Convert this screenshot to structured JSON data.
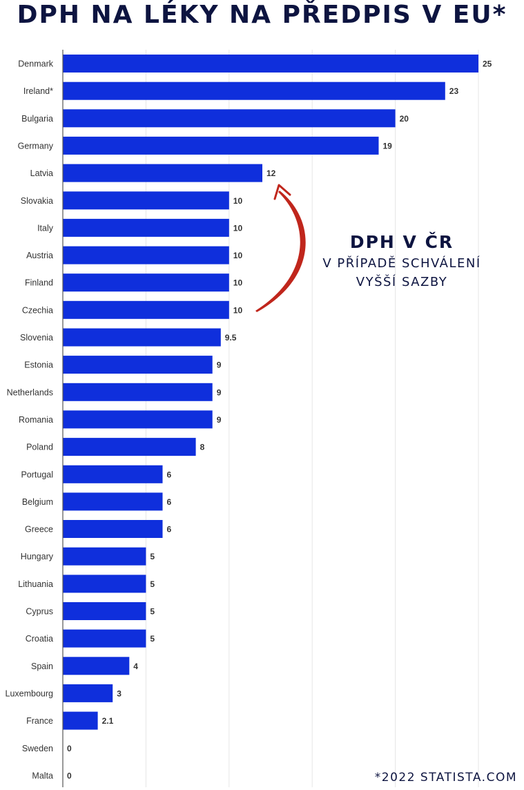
{
  "header": {
    "title": "DPH NA LÉKY NA PŘEDPIS V EU*"
  },
  "callout": {
    "title": "DPH V ČR",
    "line1": "V PŘÍPADĚ SCHVÁLENÍ",
    "line2": "VYŠŠÍ SAZBY",
    "arrow_color": "#c0261c"
  },
  "footnote": "*2022 STATISTA.COM",
  "colors": {
    "bar": "#0f2fdc",
    "text": "#0d1440"
  },
  "chart_data": {
    "type": "bar",
    "orientation": "horizontal",
    "title": "DPH NA LÉKY NA PŘEDPIS V EU*",
    "categories": [
      "Denmark",
      "Ireland*",
      "Bulgaria",
      "Germany",
      "Latvia",
      "Slovakia",
      "Italy",
      "Austria",
      "Finland",
      "Czechia",
      "Slovenia",
      "Estonia",
      "Netherlands",
      "Romania",
      "Poland",
      "Portugal",
      "Belgium",
      "Greece",
      "Hungary",
      "Lithuania",
      "Cyprus",
      "Croatia",
      "Spain",
      "Luxembourg",
      "France",
      "Sweden",
      "Malta"
    ],
    "values": [
      25,
      23,
      20,
      19,
      12,
      10,
      10,
      10,
      10,
      10,
      9.5,
      9,
      9,
      9,
      8,
      6,
      6,
      6,
      5,
      5,
      5,
      5,
      4,
      3,
      2.1,
      0,
      0
    ],
    "value_labels": [
      "25",
      "23",
      "20",
      "19",
      "12",
      "10",
      "10",
      "10",
      "10",
      "10",
      "9.5",
      "9",
      "9",
      "9",
      "8",
      "6",
      "6",
      "6",
      "5",
      "5",
      "5",
      "5",
      "4",
      "3",
      "2.1",
      "0",
      "0"
    ],
    "xlim": [
      0,
      25
    ],
    "grid": true,
    "annotation": {
      "target_category": "Czechia",
      "points_to_category": "Latvia"
    }
  }
}
